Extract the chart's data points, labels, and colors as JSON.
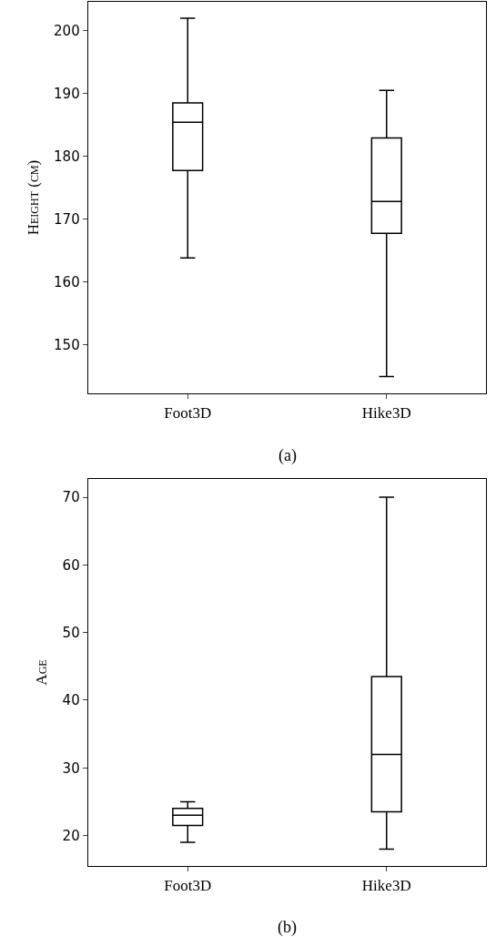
{
  "chart_data": [
    {
      "type": "box",
      "ylabel": "Height (cm)",
      "categories": [
        "Foot3D",
        "Hike3D"
      ],
      "annotations": [
        "(a)"
      ],
      "boxes": [
        {
          "low": 163.8,
          "q1": 177.7,
          "median": 185.4,
          "q3": 188.5,
          "high": 202.0
        },
        {
          "low": 144.9,
          "q1": 167.7,
          "median": 172.8,
          "q3": 182.9,
          "high": 190.5
        }
      ],
      "color": "#000000",
      "ylim": [
        142.2,
        204.6
      ],
      "yticks": [
        150,
        160,
        170,
        180,
        190,
        200
      ],
      "grid": false
    },
    {
      "type": "box",
      "ylabel": "Age",
      "categories": [
        "Foot3D",
        "Hike3D"
      ],
      "annotations": [
        "(b)"
      ],
      "boxes": [
        {
          "low": 19.0,
          "q1": 21.5,
          "median": 23.0,
          "q3": 24.0,
          "high": 25.0
        },
        {
          "low": 18.0,
          "q1": 23.5,
          "median": 32.0,
          "q3": 43.5,
          "high": 70.0
        }
      ],
      "color": "#000000",
      "ylim": [
        15.5,
        72.7
      ],
      "yticks": [
        20,
        30,
        40,
        50,
        60,
        70
      ],
      "grid": false
    }
  ]
}
